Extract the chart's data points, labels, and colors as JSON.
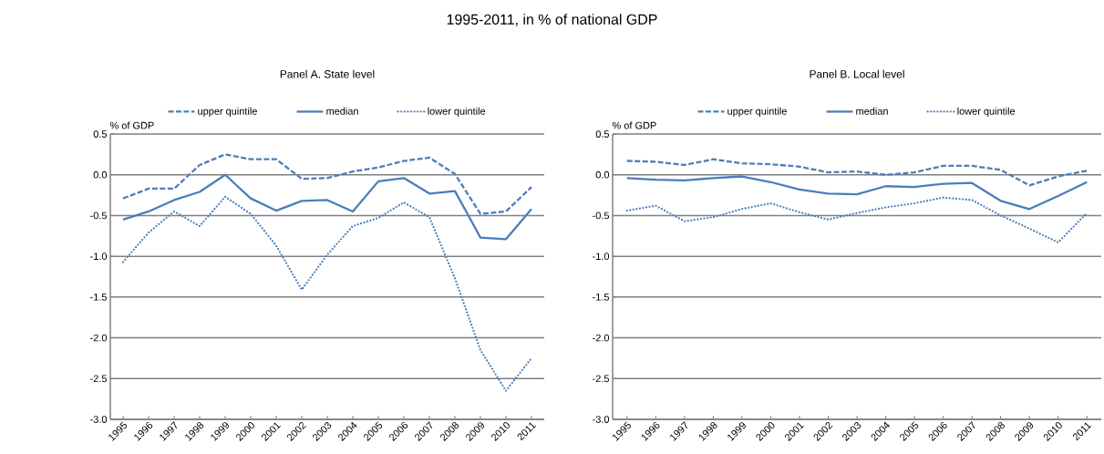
{
  "chart_data": [
    {
      "type": "line",
      "title": "Panel A. State level",
      "annotations": [
        "1995-2011, in % of national GDP"
      ],
      "ylabel": "% of GDP",
      "categories": [
        "1995",
        "1996",
        "1997",
        "1998",
        "1999",
        "2000",
        "2001",
        "2002",
        "2003",
        "2004",
        "2005",
        "2006",
        "2007",
        "2008",
        "2009",
        "2010",
        "2011"
      ],
      "series": [
        {
          "name": "upper quintile",
          "color": "#4a7ebb",
          "line_style": "dashed",
          "values": [
            -0.29,
            -0.17,
            -0.17,
            0.12,
            0.25,
            0.19,
            0.19,
            -0.05,
            -0.04,
            0.04,
            0.09,
            0.17,
            0.21,
            0.01,
            -0.48,
            -0.45,
            -0.15
          ]
        },
        {
          "name": "median",
          "color": "#4a7ebb",
          "line_style": "solid",
          "values": [
            -0.55,
            -0.45,
            -0.31,
            -0.21,
            0.0,
            -0.29,
            -0.44,
            -0.32,
            -0.31,
            -0.45,
            -0.08,
            -0.04,
            -0.23,
            -0.2,
            -0.77,
            -0.79,
            -0.42
          ]
        },
        {
          "name": "lower quintile",
          "color": "#4a7ebb",
          "line_style": "dotted",
          "values": [
            -1.07,
            -0.71,
            -0.45,
            -0.63,
            -0.27,
            -0.48,
            -0.87,
            -1.41,
            -0.98,
            -0.63,
            -0.53,
            -0.34,
            -0.52,
            -1.27,
            -2.15,
            -2.65,
            -2.25
          ]
        }
      ],
      "ylim": [
        -3.0,
        0.5
      ],
      "yticks": [
        0.5,
        {
          "value": 0,
          "label": "0.0"
        },
        -0.5,
        {
          "value": -1,
          "label": "-1.0"
        },
        -1.5,
        {
          "value": -2,
          "label": "-2.0"
        },
        -2.5,
        {
          "value": -3,
          "label": "-3.0"
        }
      ],
      "grid": "y",
      "legend": "top"
    },
    {
      "type": "line",
      "title": "Panel B. Local level",
      "ylabel": "% of GDP",
      "categories": [
        "1995",
        "1996",
        "1997",
        "1998",
        "1999",
        "2000",
        "2001",
        "2002",
        "2003",
        "2004",
        "2005",
        "2006",
        "2007",
        "2008",
        "2009",
        "2010",
        "2011"
      ],
      "series": [
        {
          "name": "upper quintile",
          "color": "#4a7ebb",
          "line_style": "dashed",
          "values": [
            0.17,
            0.16,
            0.12,
            0.19,
            0.14,
            0.13,
            0.1,
            0.03,
            0.04,
            0.0,
            0.03,
            0.11,
            0.11,
            0.06,
            -0.13,
            -0.02,
            0.05
          ]
        },
        {
          "name": "median",
          "color": "#4a7ebb",
          "line_style": "solid",
          "values": [
            -0.04,
            -0.06,
            -0.07,
            -0.04,
            -0.02,
            -0.09,
            -0.18,
            -0.23,
            -0.24,
            -0.14,
            -0.15,
            -0.11,
            -0.1,
            -0.32,
            -0.42,
            -0.26,
            -0.09
          ]
        },
        {
          "name": "lower quintile",
          "color": "#4a7ebb",
          "line_style": "dotted",
          "values": [
            -0.44,
            -0.38,
            -0.57,
            -0.52,
            -0.42,
            -0.35,
            -0.46,
            -0.55,
            -0.47,
            -0.4,
            -0.35,
            -0.28,
            -0.31,
            -0.5,
            -0.66,
            -0.83,
            -0.47
          ]
        }
      ],
      "ylim": [
        -3.0,
        0.5
      ],
      "yticks": [
        0.5,
        {
          "value": 0,
          "label": "0.0"
        },
        -0.5,
        {
          "value": -1,
          "label": "-1.0"
        },
        -1.5,
        {
          "value": -2,
          "label": "-2.0"
        },
        -2.5,
        {
          "value": -3,
          "label": "-3.0"
        }
      ],
      "grid": "y",
      "legend": "top"
    }
  ]
}
